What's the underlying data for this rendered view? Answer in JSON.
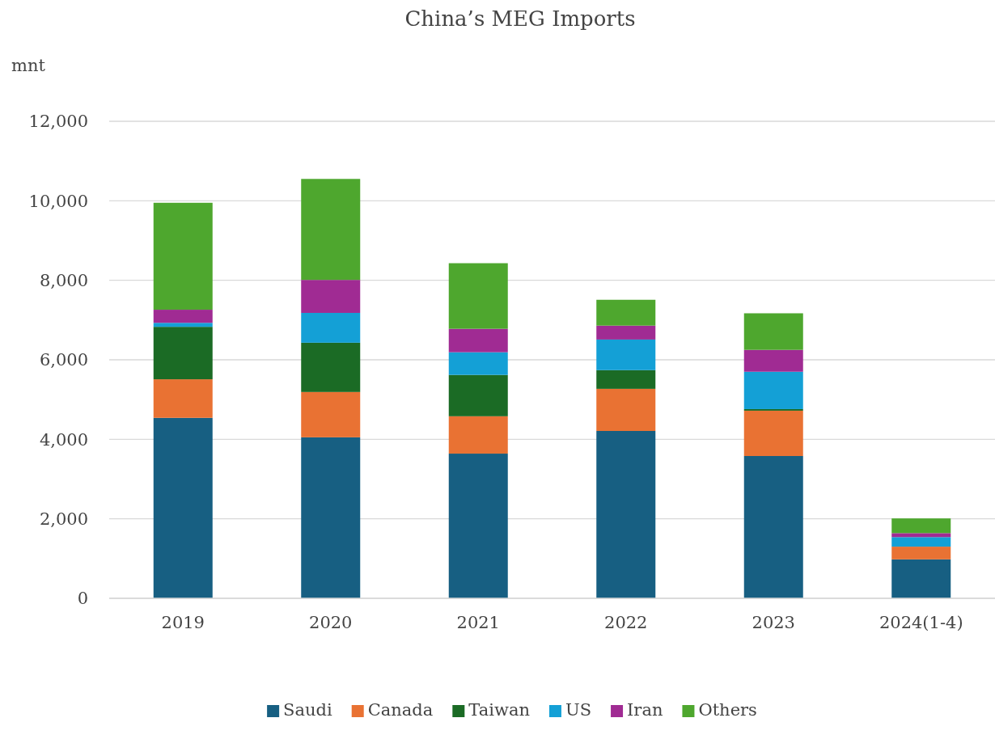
{
  "chart_data": {
    "type": "bar",
    "title": "China’s MEG Imports",
    "ylabel": "mnt",
    "stacked": true,
    "categories": [
      "2019",
      "2020",
      "2021",
      "2022",
      "2023",
      "2024(1-4)"
    ],
    "series": [
      {
        "name": "Saudi",
        "color": "#175f82",
        "values": [
          4540,
          4050,
          3640,
          4210,
          3580,
          980
        ]
      },
      {
        "name": "Canada",
        "color": "#e97233",
        "values": [
          970,
          1140,
          940,
          1060,
          1140,
          320
        ]
      },
      {
        "name": "Taiwan",
        "color": "#1b6b25",
        "values": [
          1320,
          1240,
          1040,
          470,
          40,
          null
        ]
      },
      {
        "name": "US",
        "color": "#14a0d6",
        "values": [
          100,
          750,
          570,
          770,
          940,
          240
        ]
      },
      {
        "name": "Iran",
        "color": "#a02b93",
        "values": [
          330,
          830,
          590,
          350,
          550,
          100
        ]
      },
      {
        "name": "Others",
        "color": "#4ea72e",
        "values": [
          2690,
          2540,
          1650,
          650,
          920,
          370
        ]
      }
    ],
    "ylim": [
      0,
      12000
    ],
    "yticks": [
      {
        "value": 0,
        "label": "0"
      },
      {
        "value": 2000,
        "label": "2,000"
      },
      {
        "value": 4000,
        "label": "4,000"
      },
      {
        "value": 6000,
        "label": "6,000"
      },
      {
        "value": 8000,
        "label": "8,000"
      },
      {
        "value": 10000,
        "label": "10,000"
      },
      {
        "value": 12000,
        "label": "12,000"
      }
    ],
    "grid": "y",
    "legend": "bottom"
  }
}
